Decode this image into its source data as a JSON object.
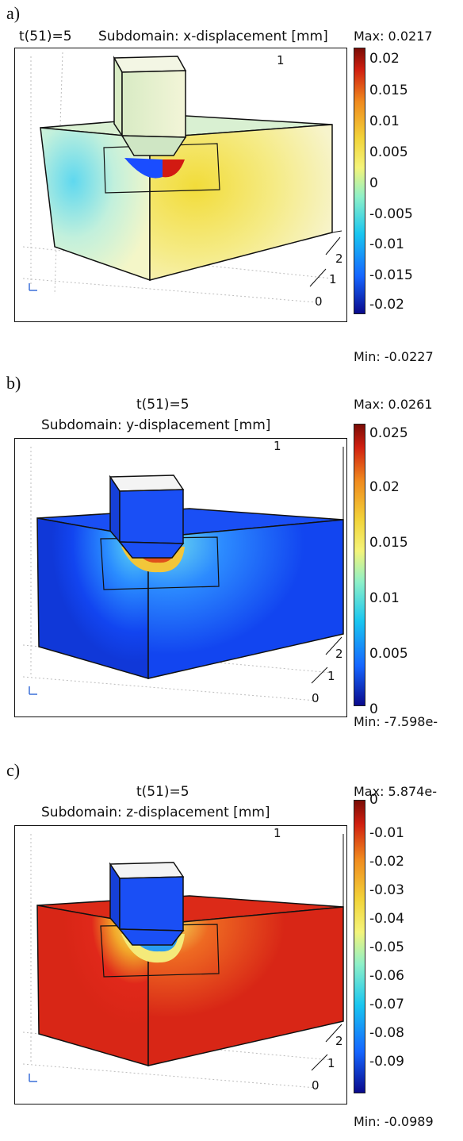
{
  "panels": [
    {
      "letter": "a)",
      "title_line1": "t(51)=5",
      "title_line2": "Subdomain: x-displacement [mm]",
      "max_label": "Max: 0.0217",
      "min_label": "Min: -0.0227",
      "colorbar_ticks": [
        "0.02",
        "0.015",
        "0.01",
        "0.005",
        "0",
        "-0.005",
        "-0.01",
        "-0.015",
        "-0.02"
      ],
      "axis_labels": {
        "top": "1",
        "side_2": "2",
        "side_1": "1",
        "side_0": "0"
      },
      "colormap": [
        "#0a0a8c",
        "#1565ff",
        "#19c6f0",
        "#8ef0c8",
        "#f4f47a",
        "#f2d43a",
        "#f08a1e",
        "#d01f10",
        "#7a0c06"
      ]
    },
    {
      "letter": "b)",
      "title_line1": "t(51)=5",
      "title_line2": "Subdomain: y-displacement [mm]",
      "max_label": "Max: 0.0261",
      "min_label": "Min: -7.598e-",
      "colorbar_ticks": [
        "0.025",
        "0.02",
        "0.015",
        "0.01",
        "0.005",
        "0"
      ],
      "axis_labels": {
        "top": "1",
        "side_2": "2",
        "side_1": "1",
        "side_0": "0"
      },
      "colormap": [
        "#0a0a8c",
        "#1565ff",
        "#19c6f0",
        "#8ef0c8",
        "#f4f47a",
        "#f2d43a",
        "#f08a1e",
        "#d01f10",
        "#7a0c06"
      ]
    },
    {
      "letter": "c)",
      "title_line1": "t(51)=5",
      "title_line2": "Subdomain: z-displacement [mm]",
      "max_label": "Max: 5.874e-",
      "min_label": "Min: -0.0989",
      "colorbar_ticks": [
        "0",
        "-0.01",
        "-0.02",
        "-0.03",
        "-0.04",
        "-0.05",
        "-0.06",
        "-0.07",
        "-0.08",
        "-0.09"
      ],
      "axis_labels": {
        "top": "1",
        "side_2": "2",
        "side_1": "1",
        "side_0": "0"
      },
      "colormap": [
        "#0a0a8c",
        "#1565ff",
        "#19c6f0",
        "#8ef0c8",
        "#f4f47a",
        "#f2d43a",
        "#f08a1e",
        "#d01f10",
        "#7a0c06"
      ]
    }
  ]
}
